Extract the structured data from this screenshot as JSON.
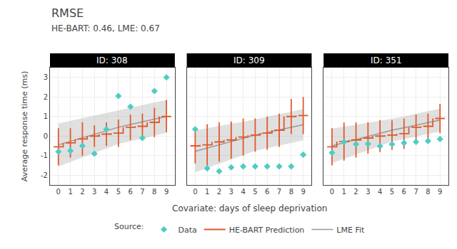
{
  "chart_data": {
    "type": "line",
    "title": "RMSE",
    "subtitle": "HE-BART: 0.46, LME: 0.67",
    "xlabel": "Covariate: days of sleep deprivation",
    "ylabel": "Average response time (ms)",
    "annotations": [
      "Source:"
    ],
    "xlim": [
      -0.7,
      9.7
    ],
    "xticks": [
      0,
      1,
      2,
      3,
      4,
      5,
      6,
      7,
      8,
      9
    ],
    "ylim": [
      -2.5,
      3.5
    ],
    "yticks": [
      -2,
      -1,
      0,
      1,
      2,
      3
    ],
    "grid": true,
    "legend": "bottom",
    "panels": [
      {
        "title": "ID: 308",
        "x": [
          0,
          1,
          2,
          3,
          4,
          5,
          6,
          7,
          8,
          9
        ],
        "series": [
          {
            "name": "Data",
            "type": "scatter",
            "marker": "diamond",
            "color": "#4ecdc4",
            "values": [
              -0.8,
              -0.75,
              -0.5,
              -0.9,
              0.35,
              2.05,
              1.5,
              -0.1,
              2.3,
              3.0
            ]
          },
          {
            "name": "HE-BART Prediction",
            "type": "step",
            "color": "#e05a2b",
            "values": [
              -0.55,
              -0.35,
              -0.15,
              0.0,
              0.1,
              0.15,
              0.45,
              0.5,
              0.7,
              1.0
            ],
            "lower": [
              -1.5,
              -1.1,
              -1.0,
              -0.55,
              -0.5,
              -0.55,
              -0.2,
              -0.15,
              -0.05,
              0.2
            ],
            "upper": [
              0.4,
              0.4,
              0.7,
              0.55,
              0.7,
              0.85,
              1.1,
              1.15,
              1.45,
              1.85
            ]
          },
          {
            "name": "LME Fit",
            "type": "band",
            "color": "#999999",
            "values": [
              -0.45,
              -0.27,
              -0.09,
              0.09,
              0.27,
              0.45,
              0.59,
              0.73,
              0.87,
              1.0
            ],
            "lower": [
              -1.55,
              -1.32,
              -1.09,
              -0.86,
              -0.63,
              -0.4,
              -0.26,
              -0.12,
              0.02,
              0.16
            ],
            "upper": [
              0.65,
              0.78,
              0.91,
              1.04,
              1.17,
              1.3,
              1.44,
              1.58,
              1.72,
              1.84
            ]
          }
        ]
      },
      {
        "title": "ID: 309",
        "x": [
          0,
          1,
          2,
          3,
          4,
          5,
          6,
          7,
          8,
          9
        ],
        "series": [
          {
            "name": "Data",
            "type": "scatter",
            "marker": "diamond",
            "color": "#4ecdc4",
            "values": [
              0.35,
              -1.65,
              -1.8,
              -1.6,
              -1.55,
              -1.55,
              -1.55,
              -1.55,
              -1.55,
              -0.95
            ]
          },
          {
            "name": "HE-BART Prediction",
            "type": "step",
            "color": "#e05a2b",
            "values": [
              -0.5,
              -0.45,
              -0.3,
              -0.2,
              -0.05,
              0.05,
              0.15,
              0.3,
              1.0,
              1.05
            ],
            "lower": [
              -1.4,
              -1.5,
              -1.3,
              -1.15,
              -1.0,
              -0.8,
              -0.7,
              -0.55,
              0.1,
              0.1
            ],
            "upper": [
              0.4,
              0.6,
              0.7,
              0.75,
              0.9,
              0.9,
              1.0,
              1.15,
              1.9,
              2.0
            ]
          },
          {
            "name": "LME Fit",
            "type": "band",
            "color": "#999999",
            "values": [
              -0.78,
              -0.61,
              -0.45,
              -0.28,
              -0.12,
              0.05,
              0.18,
              0.32,
              0.45,
              0.58
            ],
            "lower": [
              -1.85,
              -1.63,
              -1.41,
              -1.19,
              -0.97,
              -0.75,
              -0.62,
              -0.48,
              -0.35,
              -0.22
            ],
            "upper": [
              0.29,
              0.41,
              0.51,
              0.63,
              0.73,
              0.85,
              0.98,
              1.12,
              1.25,
              1.38
            ]
          }
        ]
      },
      {
        "title": "ID: 351",
        "x": [
          0,
          1,
          2,
          3,
          4,
          5,
          6,
          7,
          8,
          9
        ],
        "series": [
          {
            "name": "Data",
            "type": "scatter",
            "marker": "diamond",
            "color": "#4ecdc4",
            "values": [
              -0.85,
              -0.3,
              -0.42,
              -0.4,
              -0.52,
              -0.42,
              -0.35,
              -0.3,
              -0.25,
              -0.15
            ]
          },
          {
            "name": "HE-BART Prediction",
            "type": "step",
            "color": "#e05a2b",
            "values": [
              -0.55,
              -0.28,
              -0.2,
              -0.1,
              0.0,
              0.05,
              0.12,
              0.45,
              0.5,
              0.9
            ],
            "lower": [
              -1.5,
              -1.25,
              -1.1,
              -0.9,
              -0.82,
              -0.7,
              -0.65,
              -0.2,
              -0.15,
              0.15
            ],
            "upper": [
              0.4,
              0.69,
              0.7,
              0.7,
              0.82,
              0.8,
              0.89,
              1.1,
              1.15,
              1.65
            ]
          },
          {
            "name": "LME Fit",
            "type": "band",
            "color": "#999999",
            "values": [
              -0.5,
              -0.34,
              -0.18,
              -0.02,
              0.14,
              0.3,
              0.43,
              0.56,
              0.69,
              0.82
            ],
            "lower": [
              -1.38,
              -1.16,
              -0.94,
              -0.72,
              -0.5,
              -0.28,
              -0.15,
              -0.02,
              0.11,
              0.24
            ],
            "upper": [
              0.38,
              0.48,
              0.58,
              0.68,
              0.78,
              0.88,
              1.01,
              1.14,
              1.27,
              1.4
            ]
          }
        ]
      }
    ]
  }
}
